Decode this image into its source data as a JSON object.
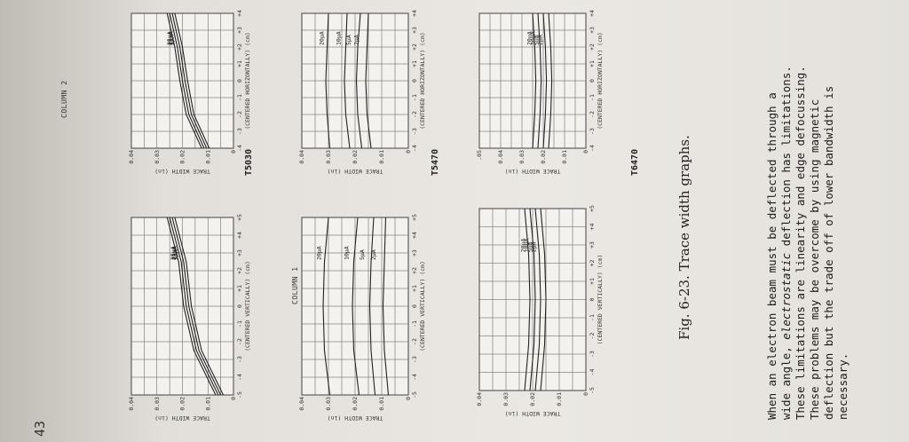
{
  "page_number": "43",
  "column_labels": [
    "COLUMN 1",
    "COLUMN 2"
  ],
  "caption": "Fig. 6-23.   Trace width graphs.",
  "body_lines": [
    "When an electron beam must be deflected through a",
    "wide angle, electrostatic deflection has limitations.",
    "These limitations are linearity and edge defocussing.",
    "These problems may be overcome by using magnetic",
    "deflection but the trade off of lower bandwidth is",
    "necessary."
  ],
  "body_italic_word": "electrostatic",
  "rows": [
    {
      "model": "T5030"
    },
    {
      "model": "T5470"
    },
    {
      "model": "T6470"
    }
  ],
  "chart_data": [
    {
      "type": "line",
      "title": "",
      "model": "",
      "xlabel": "(CENTERED VERTICALLY) (cm)",
      "ylabel": "TRACE WIDTH (in)",
      "x_ticks": [
        "-5",
        "-4",
        "-3",
        "-2",
        "-1",
        "0",
        "+1",
        "+2",
        "+3",
        "+4",
        "+5"
      ],
      "y_ticks": [
        "0",
        "0.01",
        "0.02",
        "0.03",
        "0.04"
      ],
      "ylim": [
        0,
        0.04
      ],
      "xlim": [
        -5,
        5
      ],
      "series": [
        {
          "name": "35μA",
          "x": [
            -5,
            -2.5,
            0,
            2.5,
            5
          ],
          "y": [
            0.007,
            0.0155,
            0.0195,
            0.0215,
            0.026
          ]
        },
        {
          "name": "25μA",
          "x": [
            -5,
            -2.5,
            0,
            2.5,
            5
          ],
          "y": [
            0.006,
            0.0145,
            0.0185,
            0.0205,
            0.025
          ]
        },
        {
          "name": "15μA",
          "x": [
            -5,
            -2.5,
            0,
            2.5,
            5
          ],
          "y": [
            0.005,
            0.0135,
            0.0175,
            0.0195,
            0.024
          ]
        },
        {
          "name": "5μA",
          "x": [
            -5,
            -2.5,
            0,
            2.5,
            5
          ],
          "y": [
            0.004,
            0.0125,
            0.0165,
            0.0185,
            0.023
          ]
        }
      ]
    },
    {
      "type": "line",
      "title": "",
      "model": "T5030",
      "xlabel": "(CENTERED HORIZONTALLY) (cm)",
      "ylabel": "TRACE WIDTH (in)",
      "x_ticks": [
        "-4",
        "-3",
        "-2",
        "-1",
        "0",
        "+1",
        "+2",
        "+3",
        "+4"
      ],
      "y_ticks": [
        "0",
        "0.01",
        "0.02",
        "0.03",
        "0.04"
      ],
      "ylim": [
        0,
        0.04
      ],
      "xlim": [
        -4,
        4
      ],
      "series": [
        {
          "name": "35μA",
          "x": [
            -4,
            -2,
            0,
            2,
            4
          ],
          "y": [
            0.0125,
            0.0185,
            0.021,
            0.023,
            0.026
          ]
        },
        {
          "name": "25μA",
          "x": [
            -4,
            -2,
            0,
            2,
            4
          ],
          "y": [
            0.0115,
            0.0175,
            0.02,
            0.022,
            0.025
          ]
        },
        {
          "name": "15μA",
          "x": [
            -4,
            -2,
            0,
            2,
            4
          ],
          "y": [
            0.0105,
            0.0165,
            0.019,
            0.021,
            0.024
          ]
        },
        {
          "name": "5μA",
          "x": [
            -4,
            -2,
            0,
            2,
            4
          ],
          "y": [
            0.0095,
            0.0155,
            0.018,
            0.02,
            0.023
          ]
        }
      ]
    },
    {
      "type": "line",
      "title": "",
      "model": "",
      "xlabel": "(CENTERED VERTICALLY) (cm)",
      "ylabel": "TRACE WIDTH (in)",
      "x_ticks": [
        "-5",
        "-4",
        "-3",
        "-2",
        "-1",
        "0",
        "+1",
        "+2",
        "+3",
        "+4",
        "+5"
      ],
      "y_ticks": [
        "0",
        "0.01",
        "0.02",
        "0.03",
        "0.04"
      ],
      "ylim": [
        0,
        0.04
      ],
      "xlim": [
        -5,
        5
      ],
      "series": [
        {
          "name": "20μA",
          "x": [
            -5,
            -2.5,
            0,
            2.5,
            5
          ],
          "y": [
            0.0295,
            0.0315,
            0.032,
            0.0315,
            0.03
          ]
        },
        {
          "name": "10μA",
          "x": [
            -5,
            -2.5,
            0,
            2.5,
            5
          ],
          "y": [
            0.0185,
            0.0205,
            0.021,
            0.0205,
            0.019
          ]
        },
        {
          "name": "5μA",
          "x": [
            -5,
            -2.5,
            0,
            2.5,
            5
          ],
          "y": [
            0.0125,
            0.014,
            0.0145,
            0.014,
            0.013
          ]
        },
        {
          "name": "2μA",
          "x": [
            -5,
            -2.5,
            0,
            2.5,
            5
          ],
          "y": [
            0.0075,
            0.009,
            0.0095,
            0.009,
            0.0085
          ]
        }
      ]
    },
    {
      "type": "line",
      "title": "",
      "model": "T5470",
      "xlabel": "(CENTERED HORIZONTALLY) (cm)",
      "ylabel": "TRACE WIDTH (in)",
      "x_ticks": [
        "-4",
        "-3",
        "-2",
        "-1",
        "0",
        "+1",
        "+2",
        "+3",
        "+4"
      ],
      "y_ticks": [
        "0",
        "0.01",
        "0.02",
        "0.03",
        "0.04"
      ],
      "ylim": [
        0,
        0.04
      ],
      "xlim": [
        -4,
        4
      ],
      "series": [
        {
          "name": "20μA",
          "x": [
            -4,
            -2,
            0,
            2,
            4
          ],
          "y": [
            0.0295,
            0.0305,
            0.031,
            0.0305,
            0.03
          ]
        },
        {
          "name": "10μA",
          "x": [
            -4,
            -2,
            0,
            2,
            4
          ],
          "y": [
            0.022,
            0.0235,
            0.024,
            0.0235,
            0.023
          ]
        },
        {
          "name": "5μA",
          "x": [
            -4,
            -2,
            0,
            2,
            4
          ],
          "y": [
            0.0175,
            0.019,
            0.0195,
            0.019,
            0.018
          ]
        },
        {
          "name": "2μA",
          "x": [
            -4,
            -2,
            0,
            2,
            4
          ],
          "y": [
            0.014,
            0.0155,
            0.016,
            0.0155,
            0.015
          ]
        }
      ]
    },
    {
      "type": "line",
      "title": "",
      "model": "",
      "xlabel": "(CENTERED VERTICALLY) (cm)",
      "ylabel": "TRACE WIDTH (in)",
      "x_ticks": [
        "-5",
        "-4",
        "-3",
        "-2",
        "-1",
        "0",
        "+1",
        "+2",
        "+3",
        "+4",
        "+5"
      ],
      "y_ticks": [
        "0",
        "0.01",
        "0.02",
        "0.03",
        "0.04"
      ],
      "ylim": [
        0,
        0.04
      ],
      "xlim": [
        -5,
        5
      ],
      "series": [
        {
          "name": "20μA",
          "x": [
            -5,
            -2.5,
            0,
            2.5,
            5
          ],
          "y": [
            0.023,
            0.0215,
            0.021,
            0.0215,
            0.023
          ]
        },
        {
          "name": "10μA",
          "x": [
            -5,
            -2.5,
            0,
            2.5,
            5
          ],
          "y": [
            0.021,
            0.0195,
            0.019,
            0.0195,
            0.021
          ]
        },
        {
          "name": "5μA",
          "x": [
            -5,
            -2.5,
            0,
            2.5,
            5
          ],
          "y": [
            0.019,
            0.0175,
            0.017,
            0.0175,
            0.019
          ]
        },
        {
          "name": "2μA",
          "x": [
            -5,
            -2.5,
            0,
            2.5,
            5
          ],
          "y": [
            0.017,
            0.0155,
            0.015,
            0.0155,
            0.017
          ]
        }
      ]
    },
    {
      "type": "line",
      "title": "",
      "model": "T6470",
      "xlabel": "(CENTERED HORIZONTALLY) (cm)",
      "ylabel": "TRACE WIDTH (in)",
      "x_ticks": [
        "-4",
        "-3",
        "-2",
        "-1",
        "0",
        "+1",
        "+2",
        "+3",
        "+4"
      ],
      "y_ticks": [
        "0",
        "0.01",
        "0.02",
        "0.03",
        "0.04",
        ".05"
      ],
      "ylim": [
        0,
        0.05
      ],
      "xlim": [
        -4,
        4
      ],
      "series": [
        {
          "name": "20μA",
          "x": [
            -4,
            -2,
            0,
            2,
            4
          ],
          "y": [
            0.025,
            0.024,
            0.0235,
            0.024,
            0.025
          ]
        },
        {
          "name": "10μA",
          "x": [
            -4,
            -2,
            0,
            2,
            4
          ],
          "y": [
            0.0225,
            0.0215,
            0.021,
            0.0215,
            0.0225
          ]
        },
        {
          "name": "5μA",
          "x": [
            -4,
            -2,
            0,
            2,
            4
          ],
          "y": [
            0.02,
            0.019,
            0.0185,
            0.019,
            0.02
          ]
        },
        {
          "name": "2μA",
          "x": [
            -4,
            -2,
            0,
            2,
            4
          ],
          "y": [
            0.0175,
            0.0165,
            0.016,
            0.0165,
            0.0175
          ]
        }
      ]
    }
  ]
}
